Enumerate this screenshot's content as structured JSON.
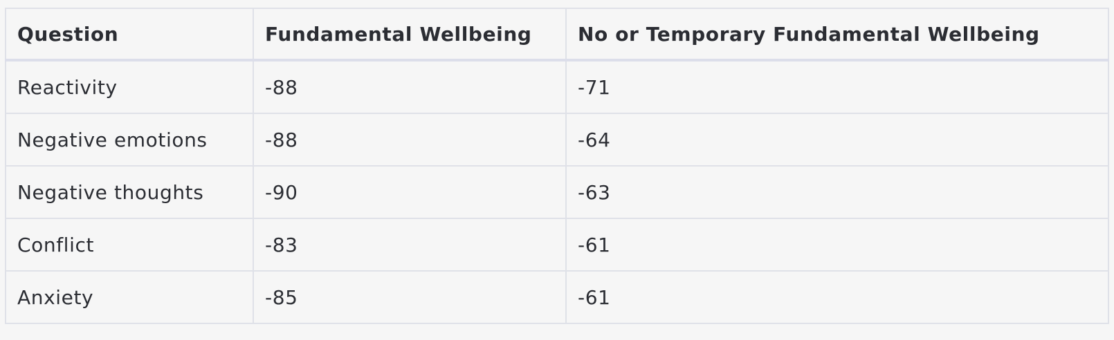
{
  "table": {
    "headers": [
      "Question",
      "Fundamental Wellbeing",
      "No or Temporary Fundamental Wellbeing"
    ],
    "rows": [
      [
        "Reactivity",
        "-88",
        "-71"
      ],
      [
        "Negative emotions",
        "-88",
        "-64"
      ],
      [
        "Negative thoughts",
        "-90",
        "-63"
      ],
      [
        "Conflict",
        "-83",
        "-61"
      ],
      [
        "Anxiety",
        "-85",
        "-61"
      ]
    ]
  },
  "colors": {
    "background": "#f6f6f6",
    "border": "#dfe1e8",
    "text": "#2b2d33"
  }
}
